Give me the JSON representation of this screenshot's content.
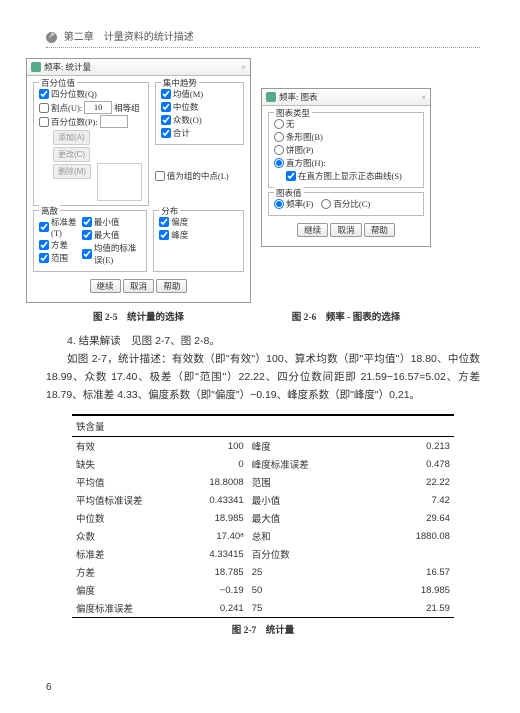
{
  "header": {
    "chapter": "第二章　计量资料的统计描述"
  },
  "dialog1": {
    "title": "频率: 统计量",
    "groups": {
      "percentile": {
        "title": "百分位值",
        "quartile": "四分位数(Q)",
        "cutpoints": "割点(U):",
        "cutpoints_val": "10",
        "cutpoints_unit": "相等组",
        "percentile_cb": "百分位数(P):",
        "btn_add": "添加(A)",
        "btn_chg": "更改(C)",
        "btn_del": "删除(M)"
      },
      "central": {
        "title": "集中趋势",
        "mean": "均值(M)",
        "median": "中位数",
        "mode": "众数(O)",
        "sum": "合计"
      },
      "midpoint": "值为组的中点(L)",
      "dispersion": {
        "title": "离散",
        "std": "标准差(T)",
        "min": "最小值",
        "var": "方差",
        "max": "最大值",
        "range": "范围",
        "sem": "均值的标准误(E)"
      },
      "distribution": {
        "title": "分布",
        "skew": "偏度",
        "kurt": "峰度"
      }
    },
    "btns": {
      "ok": "继续",
      "cancel": "取消",
      "help": "帮助"
    },
    "caption": "图 2-5　统计量的选择"
  },
  "dialog2": {
    "title": "频率: 图表",
    "chartType": {
      "title": "图表类型",
      "none": "无",
      "bar": "条形图(B)",
      "pie": "饼图(P)",
      "hist": "直方图(H):",
      "normal": "在直方图上显示正态曲线(S)"
    },
    "chartValue": {
      "title": "图表值",
      "freq": "频率(F)",
      "pct": "百分比(C)"
    },
    "btns": {
      "ok": "继续",
      "cancel": "取消",
      "help": "帮助"
    },
    "caption": "图 2-6　频率 - 图表的选择"
  },
  "body": {
    "p1": "4. 结果解读　见图 2-7、图 2-8。",
    "p2": "如图 2-7，统计描述：有效数（即\"有效\"）100、算术均数（即\"平均值\"）18.80、中位数 18.99、众数 17.40、极差（即\"范围\"）22.22、四分位数间距即 21.59−16.57=5.02、方差 18.79、标准差 4.33、偏度系数（即\"偏度\"）−0.19、峰度系数（即\"峰度\"）0.21。"
  },
  "table": {
    "title": "铁含量",
    "rows": [
      [
        "有效",
        "100",
        "峰度",
        "0.213"
      ],
      [
        "缺失",
        "0",
        "峰度标准误差",
        "0.478"
      ],
      [
        "平均值",
        "18.8008",
        "范围",
        "22.22"
      ],
      [
        "平均值标准误差",
        "0.43341",
        "最小值",
        "7.42"
      ],
      [
        "中位数",
        "18.985",
        "最大值",
        "29.64"
      ],
      [
        "众数",
        "17.40ᵃ",
        "总和",
        "1880.08"
      ],
      [
        "标准差",
        "4.33415",
        "百分位数",
        ""
      ],
      [
        "方差",
        "18.785",
        "25",
        "16.57"
      ],
      [
        "偏度",
        "−0.19",
        "50",
        "18.985"
      ],
      [
        "偏度标准误差",
        "0.241",
        "75",
        "21.59"
      ]
    ],
    "caption": "图 2-7　统计量"
  },
  "pageno": "6"
}
